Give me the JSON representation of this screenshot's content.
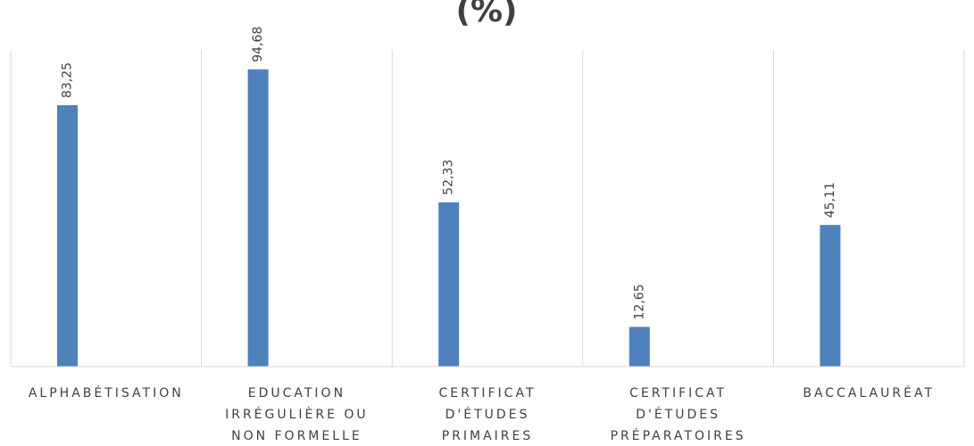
{
  "chart_data": {
    "type": "bar",
    "title": "(%)",
    "xlabel": "",
    "ylabel": "",
    "categories": [
      [
        "ALPHABÉTISATION"
      ],
      [
        "EDUCATION",
        "IRRÉGULIÈRE OU",
        "NON FORMELLE"
      ],
      [
        "CERTIFICAT",
        "D'ÉTUDES",
        "PRIMAIRES"
      ],
      [
        "CERTIFICAT",
        "D'ÉTUDES",
        "PRÉPARATOIRES"
      ],
      [
        "BACCALAURÉAT"
      ]
    ],
    "values": [
      83.25,
      94.68,
      52.33,
      12.65,
      45.11
    ],
    "value_labels": [
      "83,25",
      "94,68",
      "52,33",
      "12,65",
      "45,11"
    ],
    "ylim": [
      0,
      100
    ],
    "grid": true,
    "colors": {
      "bar": "#4f81bd",
      "grid": "#d9d9d9",
      "text": "#404040"
    }
  }
}
